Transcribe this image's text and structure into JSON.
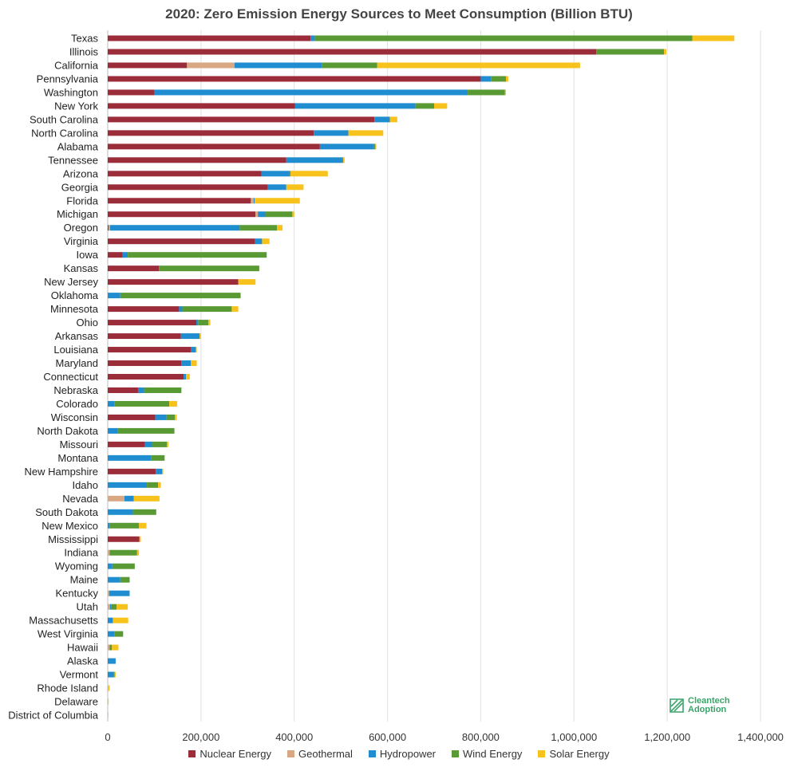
{
  "chart_data": {
    "type": "bar",
    "orientation": "horizontal",
    "stacked": true,
    "title": "2020: Zero Emission Energy Sources to Meet Consumption (Billion BTU)",
    "xlim": [
      0,
      1400000
    ],
    "x_ticks": [
      "0",
      "200,000",
      "400,000",
      "600,000",
      "800,000",
      "1,000,000",
      "1,200,000",
      "1,400,000"
    ],
    "grid": true,
    "legend_position": "bottom",
    "categories": [
      "Texas",
      "Illinois",
      "California",
      "Pennsylvania",
      "Washington",
      "New York",
      "South Carolina",
      "North Carolina",
      "Alabama",
      "Tennessee",
      "Arizona",
      "Georgia",
      "Florida",
      "Michigan",
      "Oregon",
      "Virginia",
      "Iowa",
      "Kansas",
      "New Jersey",
      "Oklahoma",
      "Minnesota",
      "Ohio",
      "Arkansas",
      "Louisiana",
      "Maryland",
      "Connecticut",
      "Nebraska",
      "Colorado",
      "Wisconsin",
      "North Dakota",
      "Missouri",
      "Montana",
      "New Hampshire",
      "Idaho",
      "Nevada",
      "South Dakota",
      "New Mexico",
      "Mississippi",
      "Indiana",
      "Wyoming",
      "Maine",
      "Kentucky",
      "Utah",
      "Massachusetts",
      "West Virginia",
      "Hawaii",
      "Alaska",
      "Vermont",
      "Rhode Island",
      "Delaware",
      "District of Columbia"
    ],
    "series": [
      {
        "name": "Nuclear Energy",
        "color": "#9b2d3a",
        "values": [
          435000,
          1048000,
          170000,
          800000,
          100000,
          402000,
          572000,
          442000,
          455000,
          383000,
          330000,
          343000,
          307000,
          317000,
          2000,
          316000,
          32000,
          110000,
          280000,
          0,
          153000,
          190000,
          157000,
          178000,
          158000,
          163000,
          65000,
          0,
          102000,
          0,
          80000,
          0,
          103000,
          0,
          0,
          0,
          0,
          68000,
          0,
          0,
          0,
          0,
          0,
          0,
          0,
          0,
          0,
          0,
          0,
          0,
          0
        ]
      },
      {
        "name": "Geothermal",
        "color": "#d9a883",
        "values": [
          0,
          0,
          102000,
          0,
          0,
          0,
          0,
          0,
          0,
          0,
          0,
          0,
          6000,
          5000,
          3000,
          0,
          0,
          0,
          0,
          0,
          0,
          0,
          0,
          0,
          0,
          0,
          0,
          0,
          0,
          0,
          0,
          0,
          0,
          0,
          36000,
          0,
          0,
          0,
          4000,
          0,
          0,
          3000,
          5000,
          0,
          0,
          4000,
          0,
          0,
          0,
          0,
          0
        ]
      },
      {
        "name": "Hydropower",
        "color": "#1f8dd0",
        "values": [
          9000,
          0,
          188000,
          22000,
          672000,
          258000,
          33000,
          74000,
          116000,
          120000,
          60000,
          40000,
          2000,
          16000,
          278000,
          15000,
          11000,
          0,
          0,
          27000,
          7000,
          4000,
          40000,
          11000,
          20000,
          5000,
          13000,
          14000,
          24000,
          22000,
          15000,
          93000,
          14000,
          84000,
          20000,
          54000,
          4000,
          0,
          0,
          10000,
          27000,
          44000,
          2000,
          11000,
          15000,
          0,
          17000,
          13000,
          0,
          0,
          0
        ]
      },
      {
        "name": "Wind Energy",
        "color": "#5a9a34",
        "values": [
          810000,
          145000,
          118000,
          32000,
          80000,
          40000,
          0,
          0,
          3000,
          2000,
          2000,
          0,
          0,
          58000,
          80000,
          0,
          298000,
          215000,
          0,
          258000,
          106000,
          22000,
          0,
          0,
          0,
          0,
          80000,
          118000,
          18000,
          121000,
          32000,
          29000,
          0,
          24000,
          0,
          50000,
          63000,
          0,
          59000,
          48000,
          20000,
          0,
          12000,
          0,
          18000,
          5000,
          0,
          2000,
          0,
          0,
          0
        ]
      },
      {
        "name": "Solar Energy",
        "color": "#f7c21c",
        "values": [
          90000,
          5000,
          435000,
          5000,
          2000,
          28000,
          16000,
          75000,
          2000,
          3000,
          80000,
          37000,
          97000,
          4000,
          12000,
          16000,
          0,
          0,
          37000,
          0,
          14000,
          4000,
          3000,
          2000,
          13000,
          8000,
          0,
          17000,
          4000,
          0,
          3000,
          0,
          2000,
          6000,
          55000,
          0,
          16000,
          3000,
          4000,
          0,
          0,
          0,
          24000,
          33000,
          0,
          14000,
          0,
          2000,
          4000,
          2000,
          1000
        ]
      }
    ]
  },
  "watermark": {
    "line1": "Cleantech",
    "line2": "Adoption"
  }
}
